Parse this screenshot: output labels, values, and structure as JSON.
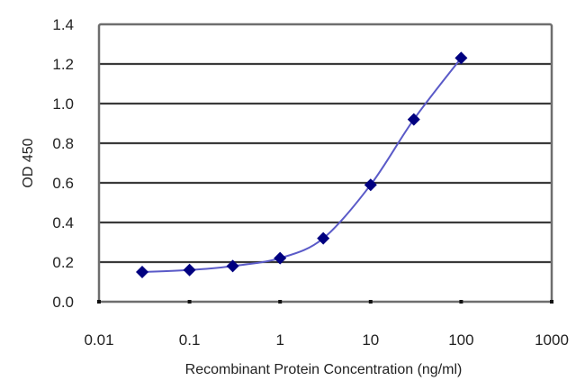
{
  "chart_data": {
    "type": "line",
    "title": "",
    "xlabel": "Recombinant Protein Concentration (ng/ml)",
    "ylabel": "OD 450",
    "x_scale": "log",
    "xlim": [
      0.01,
      1000
    ],
    "ylim": [
      0.0,
      1.4
    ],
    "x_ticks": [
      "0.01",
      "0.1",
      "1",
      "10",
      "100",
      "1000"
    ],
    "y_ticks": [
      "0.0",
      "0.2",
      "0.4",
      "0.6",
      "0.8",
      "1.0",
      "1.2",
      "1.4"
    ],
    "grid": {
      "horizontal": true,
      "vertical": false
    },
    "legend": null,
    "series": [
      {
        "name": "OD 450",
        "color": "#000080",
        "marker": "diamond",
        "x": [
          0.03,
          0.1,
          0.3,
          1,
          3,
          10,
          30,
          100
        ],
        "values": [
          0.15,
          0.16,
          0.18,
          0.22,
          0.32,
          0.59,
          0.92,
          1.23
        ]
      }
    ]
  },
  "colors": {
    "line": "#5a5ac8",
    "marker": "#000080",
    "grid": "#3a3a3a",
    "frame": "#6e6e6e"
  }
}
